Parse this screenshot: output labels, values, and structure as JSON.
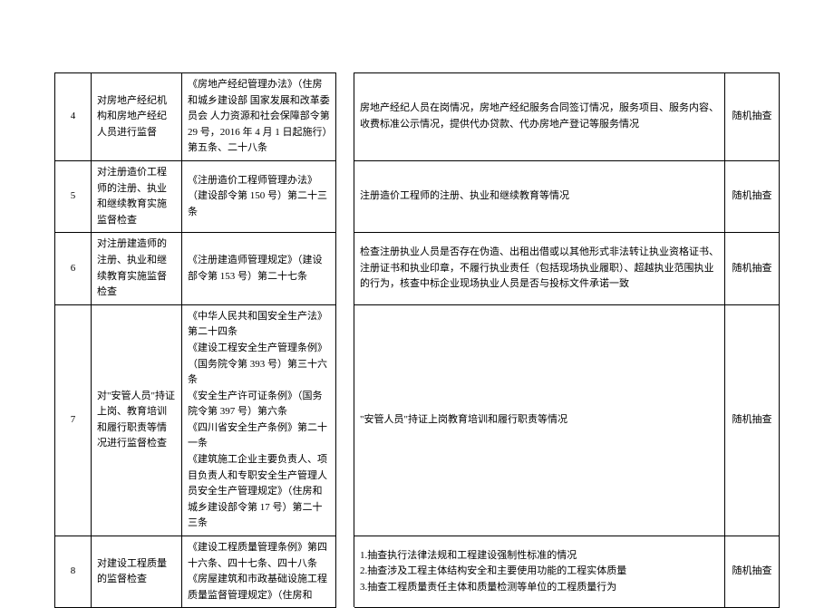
{
  "table": {
    "columns": {
      "num_width": 40,
      "item_width": 100,
      "basis_width": 170,
      "blank_width": 20,
      "method_width": 60
    },
    "font_size": 11,
    "line_height": 1.6,
    "border_color": "#000000",
    "background_color": "#ffffff",
    "rows": [
      {
        "num": "4",
        "item": "对房地产经纪机构和房地产经纪人员进行监督",
        "basis": "《房地产经纪管理办法》（住房和城乡建设部 国家发展和改革委员会 人力资源和社会保障部令第 29 号，2016 年 4 月 1 日起施行）第五条、二十八条",
        "content": "房地产经纪人员在岗情况，房地产经纪服务合同签订情况，服务项目、服务内容、收费标准公示情况，提供代办贷款、代办房地产登记等服务情况",
        "method": "随机抽查"
      },
      {
        "num": "5",
        "item": "对注册造价工程师的注册、执业和继续教育实施监督检查",
        "basis": "《注册造价工程师管理办法》（建设部令第 150 号）第二十三条",
        "content": "注册造价工程师的注册、执业和继续教育等情况",
        "method": "随机抽查"
      },
      {
        "num": "6",
        "item": "对注册建造师的注册、执业和继续教育实施监督检查",
        "basis": "《注册建造师管理规定》（建设部令第 153 号）第二十七条",
        "content": "检查注册执业人员是否存在伪造、出租出借或以其他形式非法转让执业资格证书、注册证书和执业印章，不履行执业责任（包括现场执业履职）、超越执业范围执业的行为，核查中标企业现场执业人员是否与投标文件承诺一致",
        "method": "随机抽查"
      },
      {
        "num": "7",
        "item": "对\"安管人员\"持证上岗、教育培训和履行职责等情况进行监督检查",
        "basis": "《中华人民共和国安全生产法》第二十四条\n《建设工程安全生产管理条例》（国务院令第 393 号）第三十六条\n《安全生产许可证条例》（国务院令第 397 号）第六条\n《四川省安全生产条例》第二十一条\n《建筑施工企业主要负责人、项目负责人和专职安全生产管理人员安全生产管理规定》（住房和城乡建设部令第 17 号）第二十三条",
        "content": "\"安管人员\"持证上岗教育培训和履行职责等情况",
        "method": "随机抽查"
      },
      {
        "num": "8",
        "item": "对建设工程质量的监督检查",
        "basis": "《建设工程质量管理条例》第四十六条、四十七条、四十八条\n《房屋建筑和市政基础设施工程质量监督管理规定》（住房和",
        "content": "1.抽查执行法律法规和工程建设强制性标准的情况\n2.抽查涉及工程主体结构安全和主要使用功能的工程实体质量\n3.抽查工程质量责任主体和质量检测等单位的工程质量行为",
        "method": "随机抽查"
      }
    ]
  }
}
